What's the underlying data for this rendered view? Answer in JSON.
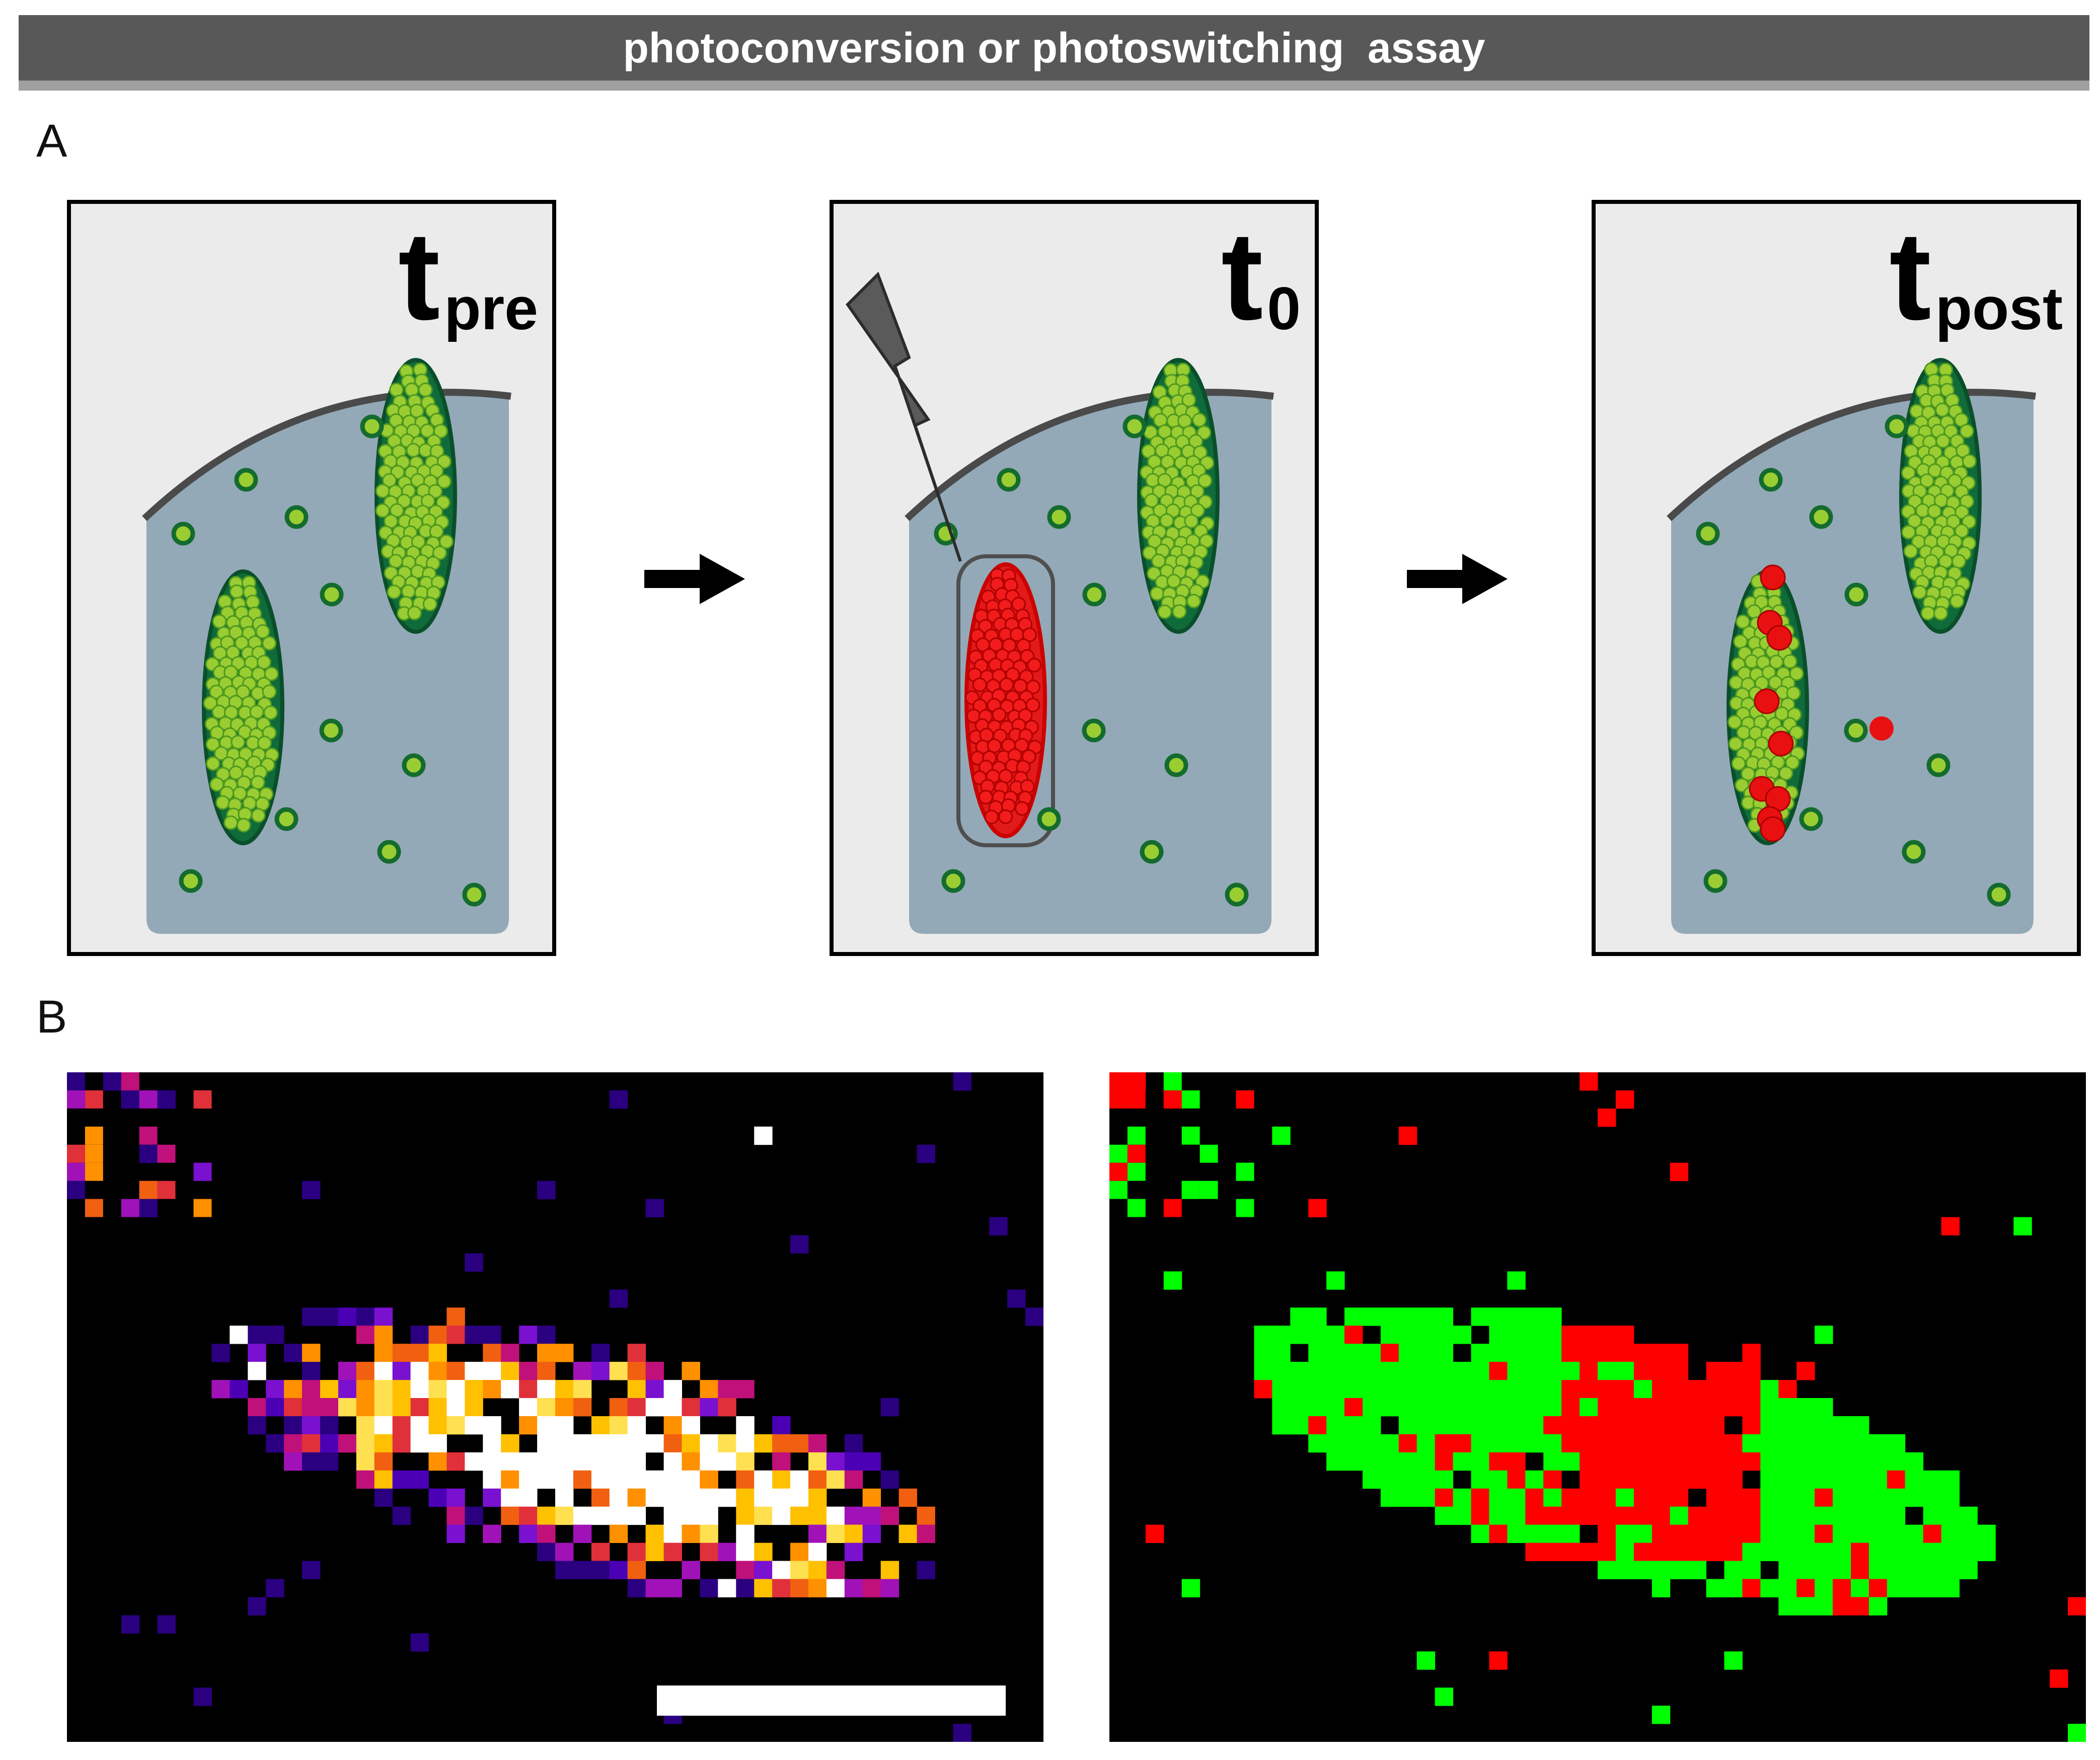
{
  "header": {
    "title": "photoconversion or photoswitching  assay"
  },
  "panel_labels": {
    "a": "A",
    "b": "B"
  },
  "timepoints": [
    {
      "main": "t",
      "sub": "pre"
    },
    {
      "main": "t",
      "sub": "0"
    },
    {
      "main": "t",
      "sub": "post"
    }
  ],
  "colors": {
    "cytoplasm": "#93a9b7",
    "membrane": "#4a4a4a",
    "organelle_fill": "#0f6b3a",
    "particle_green": "#9acd32",
    "particle_red": "#e81010",
    "frame_bg": "#ebebeb",
    "laser": "#5a5a5a",
    "overlay_green": "#00ff00",
    "overlay_red": "#ff0000"
  },
  "icons": {
    "laser": "lightning-bolt-icon",
    "arrow": "right-arrow-icon"
  }
}
